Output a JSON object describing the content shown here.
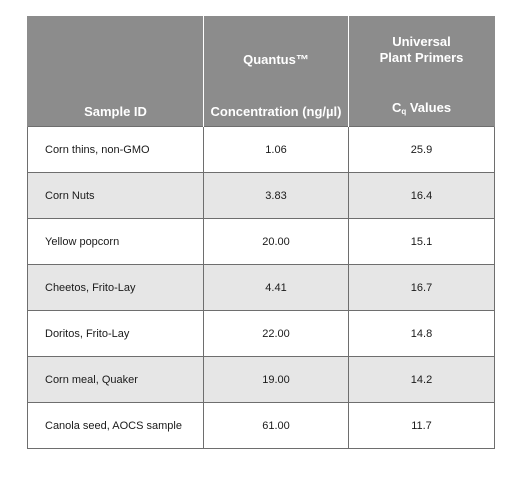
{
  "table": {
    "headers": [
      {
        "top": "",
        "bottom": "Sample ID"
      },
      {
        "top": "Quantus™",
        "bottom": "Concentration (ng/µl)"
      },
      {
        "top_line1": "Universal",
        "top_line2": "Plant Primers",
        "bottom_main": "C",
        "bottom_sub": "q",
        "bottom_rest": " Values"
      }
    ],
    "rows": [
      {
        "sample": "Corn thins, non-GMO",
        "concentration": "1.06",
        "cq": "25.9"
      },
      {
        "sample": "Corn Nuts",
        "concentration": "3.83",
        "cq": "16.4"
      },
      {
        "sample": "Yellow popcorn",
        "concentration": "20.00",
        "cq": "15.1"
      },
      {
        "sample": "Cheetos, Frito-Lay",
        "concentration": "4.41",
        "cq": "16.7"
      },
      {
        "sample": "Doritos, Frito-Lay",
        "concentration": "22.00",
        "cq": "14.8"
      },
      {
        "sample": "Corn meal, Quaker",
        "concentration": "19.00",
        "cq": "14.2"
      },
      {
        "sample": "Canola seed, AOCS sample",
        "concentration": "61.00",
        "cq": "11.7"
      }
    ]
  },
  "colors": {
    "header_bg": "#8c8c8c",
    "shaded_row": "#e6e6e6",
    "border": "#6e6e6e"
  }
}
